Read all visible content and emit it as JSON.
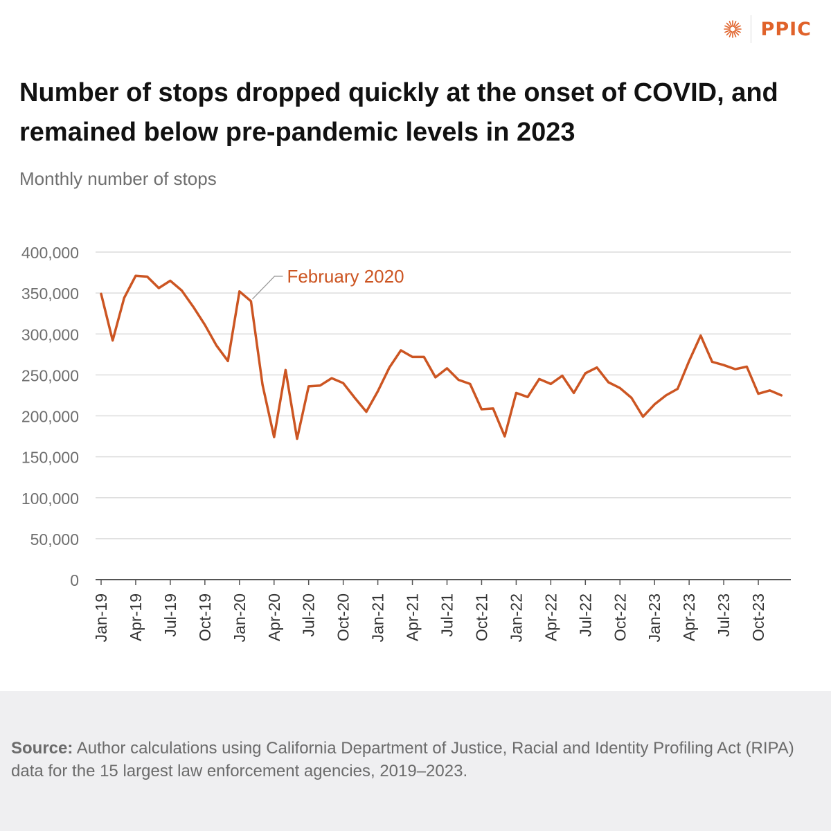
{
  "brand": {
    "name": "PPIC",
    "accent": "#e0622a"
  },
  "title": "Number of stops dropped quickly at the onset of COVID, and remained below pre-pandemic levels in 2023",
  "subtitle": "Monthly number of stops",
  "source": {
    "label": "Source:",
    "text": "Author calculations using California Department of Justice, Racial and Identity Profiling Act (RIPA) data for the 15 largest law enforcement agencies, 2019–2023."
  },
  "chart_data": {
    "type": "line",
    "title": "Number of stops dropped quickly at the onset of COVID, and remained below pre-pandemic levels in 2023",
    "ylabel": "Monthly number of stops",
    "ylim": [
      0,
      400000
    ],
    "yticks": [
      "0",
      "50,000",
      "100,000",
      "150,000",
      "200,000",
      "250,000",
      "300,000",
      "350,000",
      "400,000"
    ],
    "ytick_values": [
      0,
      50000,
      100000,
      150000,
      200000,
      250000,
      300000,
      350000,
      400000
    ],
    "xtick_labels": [
      "Jan-19",
      "Apr-19",
      "Jul-19",
      "Oct-19",
      "Jan-20",
      "Apr-20",
      "Jul-20",
      "Oct-20",
      "Jan-21",
      "Apr-21",
      "Jul-21",
      "Oct-21",
      "Jan-22",
      "Apr-22",
      "Jul-22",
      "Oct-22",
      "Jan-23",
      "Apr-23",
      "Jul-23",
      "Oct-23"
    ],
    "grid": true,
    "line_color": "#cc5522",
    "annotation": {
      "text": "February 2020",
      "month_index": 13
    },
    "series": [
      {
        "values": [
          349000,
          292000,
          344000,
          371000,
          370000,
          356000,
          365000,
          353000,
          333000,
          311000,
          286000,
          267000,
          352000,
          340000,
          238000,
          174000,
          256000,
          172000,
          236000,
          237000,
          246000,
          240000,
          222000,
          205000,
          230000,
          259000,
          280000,
          272000,
          272000,
          247000,
          258000,
          244000,
          239000,
          208000,
          209000,
          175000,
          228000,
          223000,
          245000,
          239000,
          249000,
          228000,
          252000,
          259000,
          241000,
          234000,
          222000,
          199000,
          214000,
          225000,
          233000,
          267000,
          298000,
          266000,
          262000,
          257000,
          260000,
          227000,
          231000,
          225000
        ]
      }
    ]
  }
}
